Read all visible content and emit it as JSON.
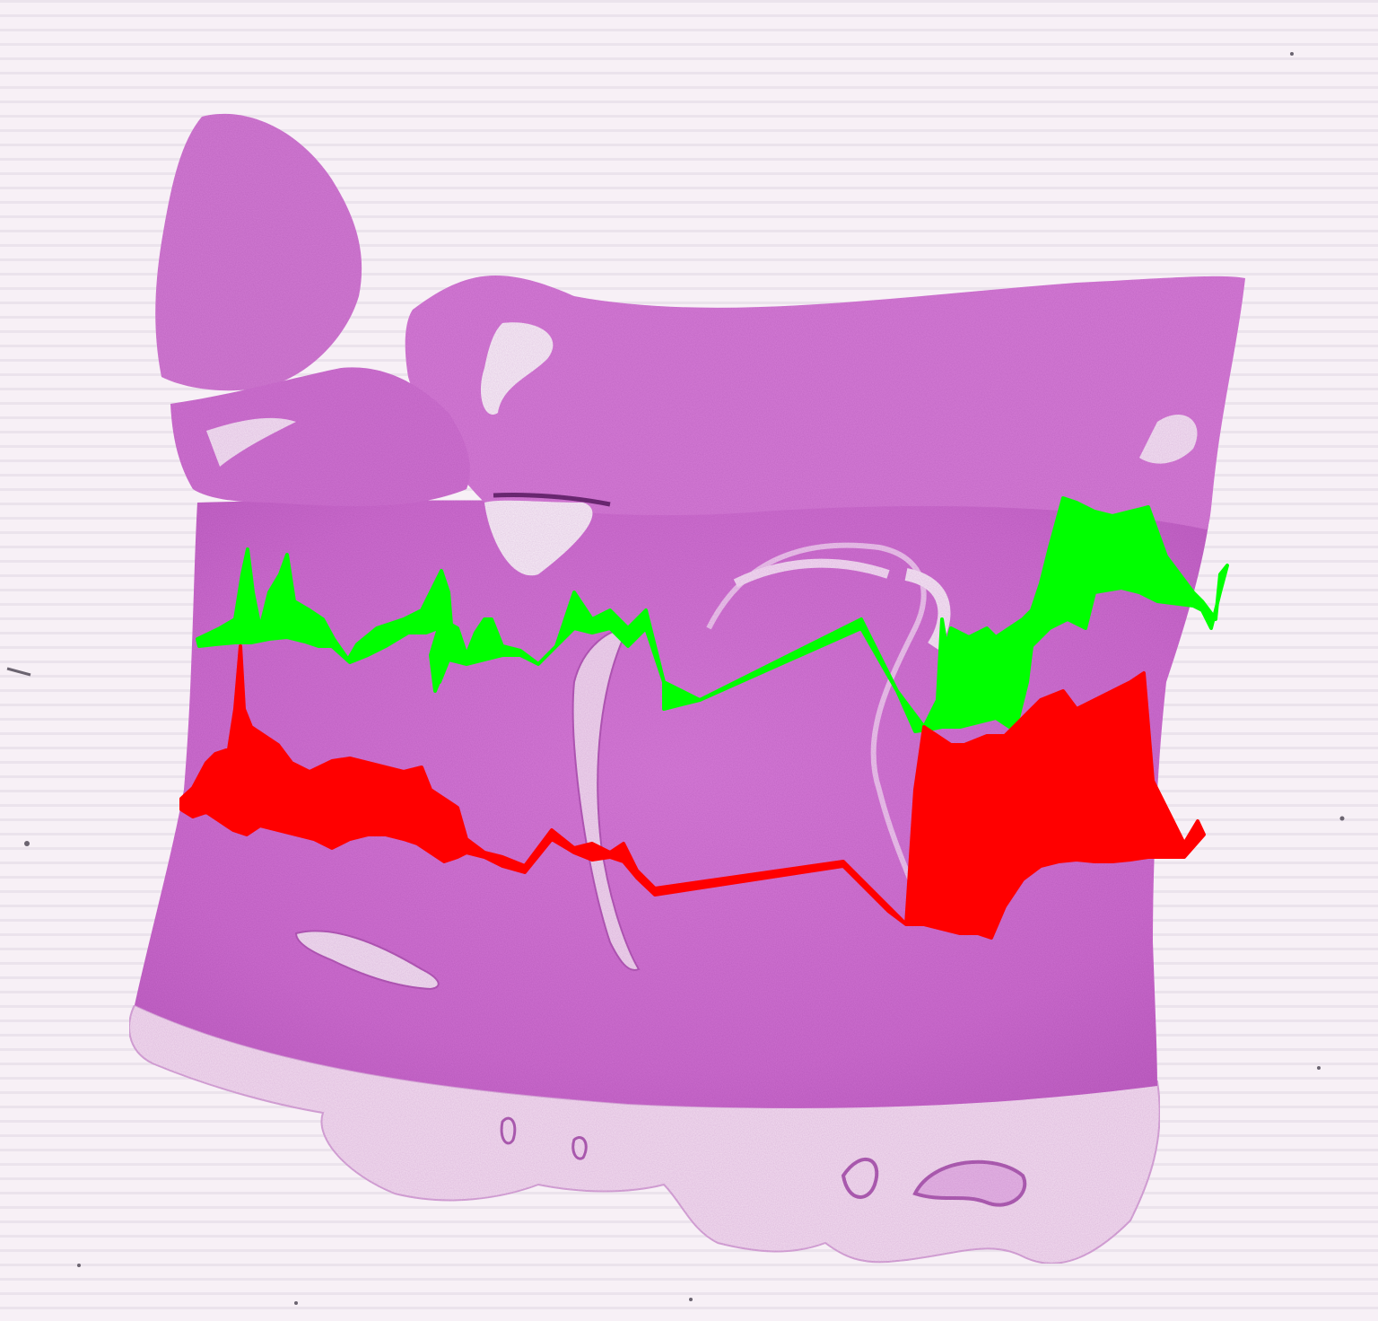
{
  "colors": {
    "background": "#f7f0f6",
    "stripe": "#e9e2ea",
    "tissue_light": "#db86da",
    "tissue_mid": "#cf6fd0",
    "tissue_dark": "#b954bc",
    "fat": "#f2ddf0",
    "fat_edge": "#c483c6",
    "annotation_upper": "#00ff00",
    "annotation_lower": "#ff0000"
  },
  "annotations": [
    {
      "name": "upper-boundary-trace",
      "color_key": "annotation_upper"
    },
    {
      "name": "lower-boundary-trace",
      "color_key": "annotation_lower"
    }
  ]
}
